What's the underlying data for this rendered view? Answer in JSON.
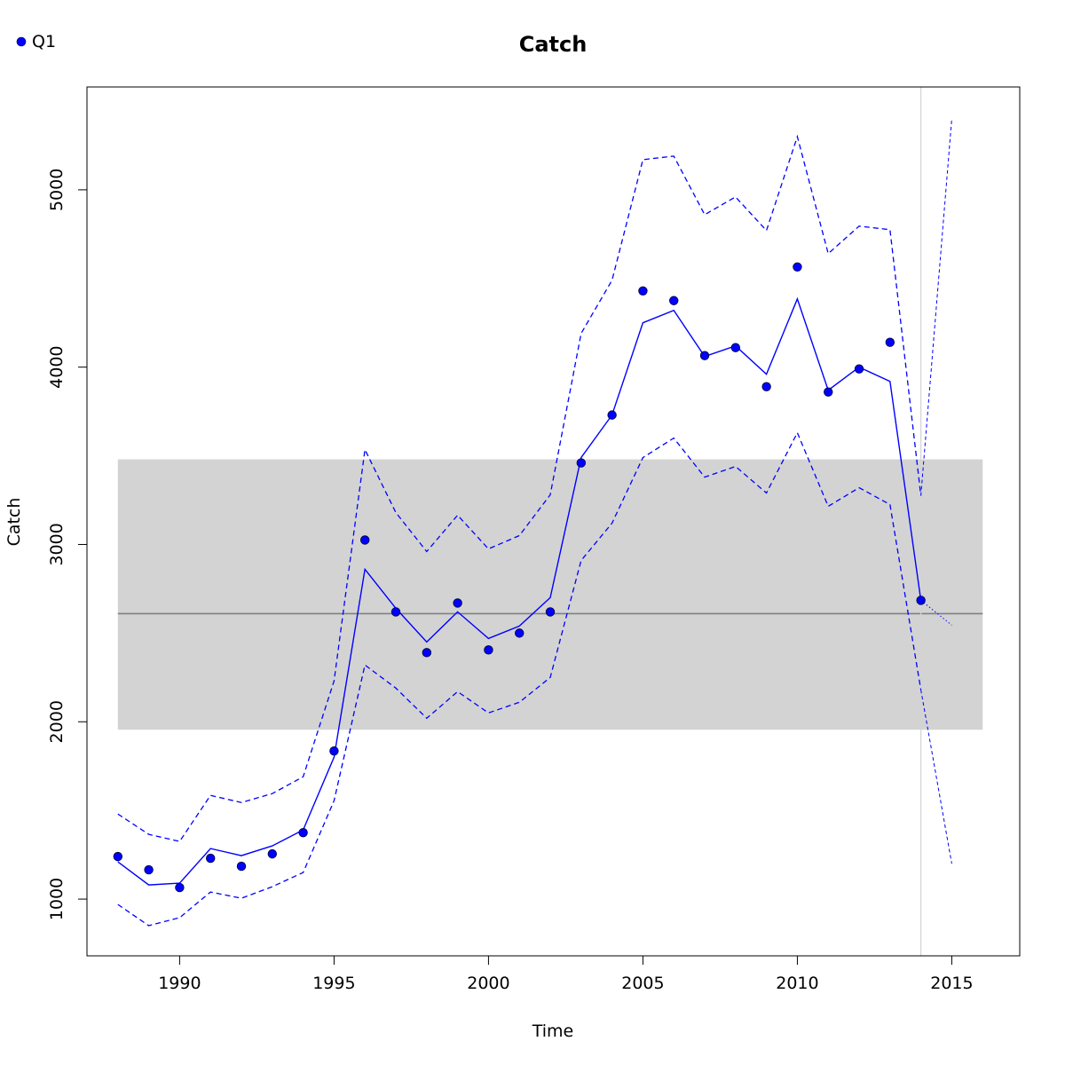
{
  "chart_data": {
    "type": "line",
    "title": "Catch",
    "xlabel": "Time",
    "ylabel": "Catch",
    "xlim": [
      1987,
      2017.2
    ],
    "ylim": [
      680,
      5580
    ],
    "x_ticks": [
      1990,
      1995,
      2000,
      2005,
      2010,
      2015
    ],
    "y_ticks": [
      1000,
      2000,
      3000,
      4000,
      5000
    ],
    "grid": false,
    "legend": {
      "position": "top-left",
      "entries": [
        "Q1"
      ]
    },
    "colors": {
      "series": "#0000ff",
      "band": "#d3d3d3",
      "mean_line": "#808080",
      "vline": "#d3d3d3"
    },
    "reference_band": {
      "x": [
        1988,
        2016
      ],
      "y_low": 1955,
      "y_high": 3480,
      "mean": 2610
    },
    "vertical_line_x": 2014,
    "series": [
      {
        "name": "Q1",
        "role": "observed_points",
        "x": [
          1988,
          1989,
          1990,
          1991,
          1992,
          1993,
          1994,
          1995,
          1996,
          1997,
          1998,
          1999,
          2000,
          2001,
          2002,
          2003,
          2004,
          2005,
          2006,
          2007,
          2008,
          2009,
          2010,
          2011,
          2012,
          2013,
          2014
        ],
        "values": [
          1240,
          1165,
          1065,
          1230,
          1185,
          1255,
          1375,
          1835,
          3025,
          2620,
          2390,
          2670,
          2405,
          2500,
          2620,
          3460,
          3730,
          4430,
          4375,
          4065,
          4110,
          3890,
          4565,
          3860,
          3990,
          4140,
          2685
        ]
      },
      {
        "role": "fitted",
        "x": [
          1988,
          1989,
          1990,
          1991,
          1992,
          1993,
          1994,
          1995,
          1996,
          1997,
          1998,
          1999,
          2000,
          2001,
          2002,
          2003,
          2004,
          2005,
          2006,
          2007,
          2008,
          2009,
          2010,
          2011,
          2012,
          2013,
          2014
        ],
        "values": [
          1210,
          1080,
          1090,
          1285,
          1245,
          1300,
          1390,
          1800,
          2860,
          2640,
          2450,
          2620,
          2470,
          2540,
          2700,
          3490,
          3730,
          4250,
          4320,
          4060,
          4120,
          3960,
          4385,
          3870,
          4000,
          3920,
          2685
        ]
      },
      {
        "role": "upper_bound",
        "x": [
          1988,
          1989,
          1990,
          1991,
          1992,
          1993,
          1994,
          1995,
          1996,
          1997,
          1998,
          1999,
          2000,
          2001,
          2002,
          2003,
          2004,
          2005,
          2006,
          2007,
          2008,
          2009,
          2010,
          2011,
          2012,
          2013,
          2014
        ],
        "values": [
          1480,
          1365,
          1325,
          1585,
          1545,
          1595,
          1690,
          2230,
          3535,
          3180,
          2960,
          3165,
          2975,
          3050,
          3280,
          4190,
          4490,
          5170,
          5190,
          4860,
          4960,
          4770,
          5300,
          4640,
          4795,
          4775,
          3275
        ]
      },
      {
        "role": "lower_bound",
        "x": [
          1988,
          1989,
          1990,
          1991,
          1992,
          1993,
          1994,
          1995,
          1996,
          1997,
          1998,
          1999,
          2000,
          2001,
          2002,
          2003,
          2004,
          2005,
          2006,
          2007,
          2008,
          2009,
          2010,
          2011,
          2012,
          2013,
          2014
        ],
        "values": [
          970,
          850,
          895,
          1040,
          1005,
          1070,
          1150,
          1555,
          2320,
          2190,
          2020,
          2170,
          2050,
          2110,
          2250,
          2910,
          3120,
          3490,
          3600,
          3380,
          3440,
          3290,
          3630,
          3215,
          3320,
          3225,
          2180
        ]
      },
      {
        "role": "forecast",
        "x": [
          2014,
          2015
        ],
        "values": [
          2685,
          2545
        ],
        "upper": [
          3275,
          5400
        ],
        "lower": [
          2180,
          1200
        ]
      }
    ]
  }
}
